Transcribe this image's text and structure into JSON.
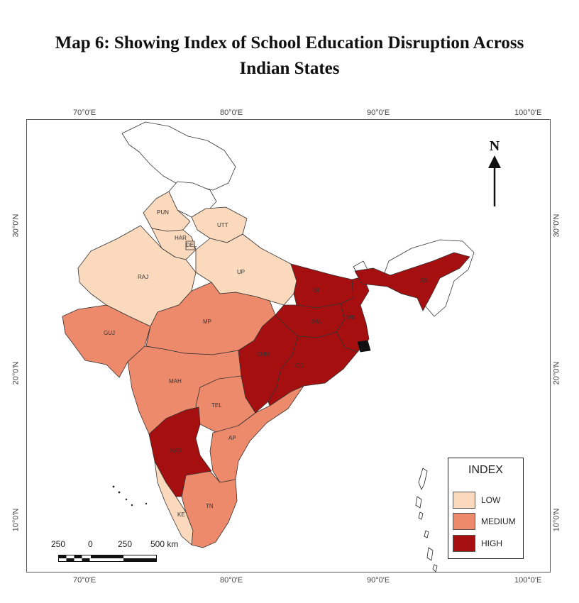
{
  "title": {
    "line1": "Map 6: Showing Index of School Education Disruption Across",
    "line2": "Indian States"
  },
  "axes": {
    "longitude_ticks": [
      "70°0'E",
      "80°0'E",
      "90°0'E",
      "100°0'E"
    ],
    "latitude_ticks": [
      "30°0'N",
      "20°0'N",
      "10°0'N"
    ]
  },
  "north_arrow": {
    "letter": "N"
  },
  "scale_bar": {
    "labels": [
      "250",
      "0",
      "250",
      "500 km"
    ]
  },
  "legend": {
    "title": "INDEX",
    "items": [
      {
        "label": "LOW",
        "color": "#fbd9bd"
      },
      {
        "label": "MEDIUM",
        "color": "#ee8a6c"
      },
      {
        "label": "HIGH",
        "color": "#a50f0f"
      }
    ]
  },
  "colors": {
    "low": "#fbd9bd",
    "medium": "#ee8a6c",
    "high": "#a50f0f",
    "no_data": "#ffffff",
    "border": "#333333"
  },
  "states": [
    {
      "abbr": "PUN",
      "category": "low"
    },
    {
      "abbr": "HAR",
      "category": "low"
    },
    {
      "abbr": "DEL",
      "category": "low"
    },
    {
      "abbr": "UTT",
      "category": "low"
    },
    {
      "abbr": "RAJ",
      "category": "low"
    },
    {
      "abbr": "UP",
      "category": "low"
    },
    {
      "abbr": "BI",
      "category": "high"
    },
    {
      "abbr": "AS",
      "category": "high"
    },
    {
      "abbr": "GUJ",
      "category": "medium"
    },
    {
      "abbr": "MP",
      "category": "medium"
    },
    {
      "abbr": "JHA",
      "category": "high"
    },
    {
      "abbr": "WB",
      "category": "high"
    },
    {
      "abbr": "CHH",
      "category": "high"
    },
    {
      "abbr": "OD",
      "category": "high"
    },
    {
      "abbr": "MAH",
      "category": "medium"
    },
    {
      "abbr": "TEL",
      "category": "medium"
    },
    {
      "abbr": "AP",
      "category": "medium"
    },
    {
      "abbr": "KAR",
      "category": "high"
    },
    {
      "abbr": "TN",
      "category": "medium"
    },
    {
      "abbr": "KE",
      "category": "low"
    }
  ]
}
